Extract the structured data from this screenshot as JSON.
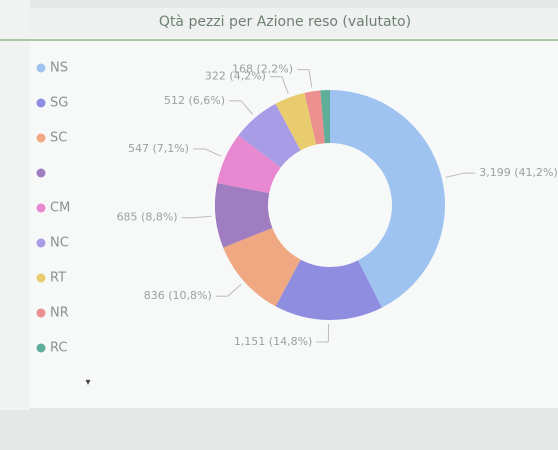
{
  "chart_data": {
    "type": "donut",
    "title": "Qtà pezzi per Azione reso (valutato)",
    "categories": [
      "NS",
      "SG",
      "SC",
      null,
      "CM",
      "NC",
      "RT",
      "NR",
      "RC"
    ],
    "values": [
      3199,
      1151,
      836,
      685,
      547,
      512,
      322,
      168,
      100
    ],
    "value_labels": [
      "3,199 (41,2%)",
      "1,151 (14,8%)",
      "836 (10,8%)",
      "685 (8,8%)",
      "547 (7,1%)",
      "512 (6,6%)",
      "322 (4,2%)",
      "168 (2,2%)",
      null
    ],
    "colors": [
      "#9fc3f0",
      "#8f8de0",
      "#f0a882",
      "#a07cc0",
      "#e888d0",
      "#a99ce6",
      "#e8cc6e",
      "#ec8f8f",
      "#5fae9a"
    ]
  }
}
